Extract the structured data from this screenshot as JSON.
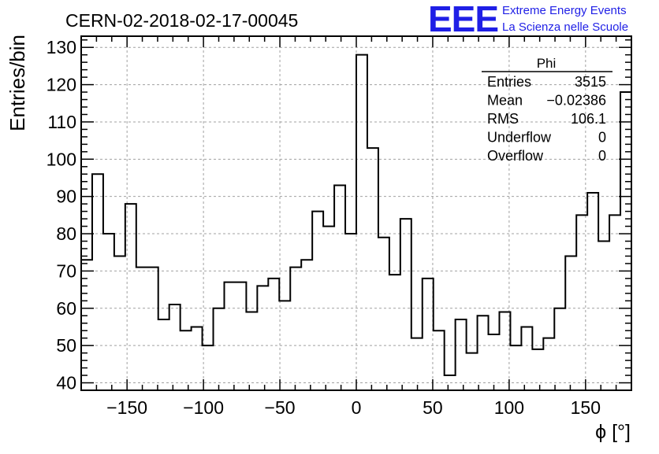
{
  "header": {
    "run_title": "CERN-02-2018-02-17-00045",
    "logo_text": "EEE",
    "logo_line1": "Extreme Energy Events",
    "logo_line2": "La Scienza nelle Scuole"
  },
  "colors": {
    "logo": "#1f1fe6",
    "histogram": "#000000",
    "grid": "#a0a0a0"
  },
  "stats_box": {
    "title": "Phi",
    "rows": [
      {
        "label": "Entries",
        "value": "3515"
      },
      {
        "label": "Mean",
        "value": "−0.02386"
      },
      {
        "label": "RMS",
        "value": "106.1"
      },
      {
        "label": "Underflow",
        "value": "0"
      },
      {
        "label": "Overflow",
        "value": "0"
      }
    ]
  },
  "chart_data": {
    "type": "bar",
    "style": "step-histogram",
    "xlabel": "ϕ [°]",
    "ylabel": "Entries/bin",
    "xlim": [
      -180,
      180
    ],
    "ylim": [
      38,
      133
    ],
    "grid": true,
    "bin_width": 7.2,
    "x_ticks": [
      -150,
      -100,
      -50,
      0,
      50,
      100,
      150
    ],
    "x_tick_labels": [
      "−150",
      "−100",
      "−50",
      "0",
      "50",
      "100",
      "150"
    ],
    "y_ticks": [
      40,
      50,
      60,
      70,
      80,
      90,
      100,
      110,
      120,
      130
    ],
    "y_tick_labels": [
      "40",
      "50",
      "60",
      "70",
      "80",
      "90",
      "100",
      "110",
      "120",
      "130"
    ],
    "values": [
      73,
      96,
      80,
      74,
      88,
      71,
      71,
      57,
      61,
      54,
      55,
      50,
      60,
      67,
      67,
      59,
      66,
      68,
      62,
      71,
      73,
      86,
      82,
      93,
      80,
      128,
      103,
      79,
      69,
      84,
      52,
      68,
      54,
      42,
      57,
      48,
      58,
      53,
      59,
      50,
      55,
      49,
      52,
      60,
      74,
      85,
      91,
      78,
      85,
      118
    ]
  }
}
